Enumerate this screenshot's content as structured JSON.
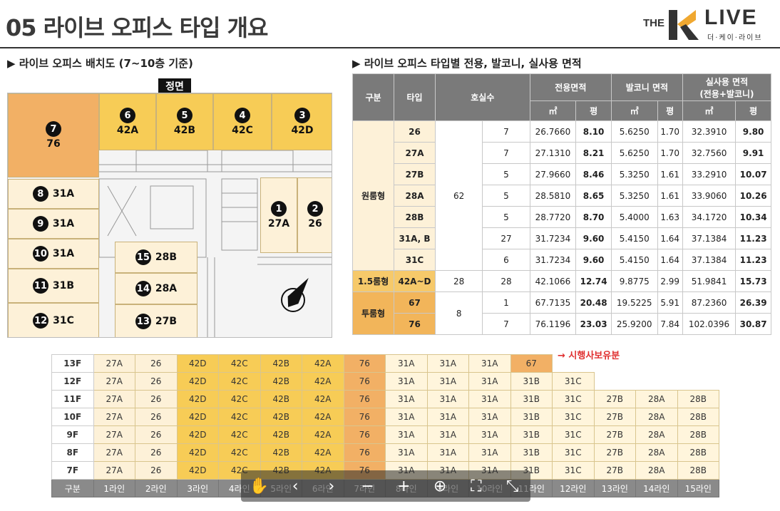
{
  "page": {
    "title": "05 라이브 오피스 타입 개요",
    "logo": {
      "the": "THE",
      "live": "LIVE",
      "sub": "더·케이·라이브"
    }
  },
  "plan": {
    "heading": "▶ 라이브 오피스 배치도 (7~10층 기준)",
    "facade": "정면",
    "units": [
      {
        "n": "7",
        "type": "76"
      },
      {
        "n": "6",
        "type": "42A"
      },
      {
        "n": "5",
        "type": "42B"
      },
      {
        "n": "4",
        "type": "42C"
      },
      {
        "n": "3",
        "type": "42D"
      },
      {
        "n": "8",
        "type": "31A"
      },
      {
        "n": "9",
        "type": "31A"
      },
      {
        "n": "10",
        "type": "31A"
      },
      {
        "n": "11",
        "type": "31B"
      },
      {
        "n": "12",
        "type": "31C"
      },
      {
        "n": "15",
        "type": "28B"
      },
      {
        "n": "14",
        "type": "28A"
      },
      {
        "n": "13",
        "type": "27B"
      },
      {
        "n": "1",
        "type": "27A"
      },
      {
        "n": "2",
        "type": "26"
      }
    ],
    "colors": {
      "unit76": "#f2b065",
      "unit42": "#f7cc56",
      "unitOther": "#fdf1d8"
    }
  },
  "area_table": {
    "heading": "▶ 라이브 오피스 타입별 전용, 발코니, 실사용 면적",
    "h": {
      "cat": "구분",
      "type": "타입",
      "rooms": "호실수",
      "exclusive": "전용면적",
      "balcony": "발코니 면적",
      "actual": "실사용 면적",
      "actual_sub": "(전용+발코니)",
      "m2": "㎡",
      "py": "평"
    },
    "groups": [
      {
        "name": "원룸형",
        "total": "62",
        "rows": [
          {
            "type": "26",
            "rooms": "7",
            "em": "26.7660",
            "ep": "8.10",
            "bm": "5.6250",
            "bp": "1.70",
            "am": "32.3910",
            "ap": "9.80"
          },
          {
            "type": "27A",
            "rooms": "7",
            "em": "27.1310",
            "ep": "8.21",
            "bm": "5.6250",
            "bp": "1.70",
            "am": "32.7560",
            "ap": "9.91"
          },
          {
            "type": "27B",
            "rooms": "5",
            "em": "27.9660",
            "ep": "8.46",
            "bm": "5.3250",
            "bp": "1.61",
            "am": "33.2910",
            "ap": "10.07"
          },
          {
            "type": "28A",
            "rooms": "5",
            "em": "28.5810",
            "ep": "8.65",
            "bm": "5.3250",
            "bp": "1.61",
            "am": "33.9060",
            "ap": "10.26"
          },
          {
            "type": "28B",
            "rooms": "5",
            "em": "28.7720",
            "ep": "8.70",
            "bm": "5.4000",
            "bp": "1.63",
            "am": "34.1720",
            "ap": "10.34"
          },
          {
            "type": "31A, B",
            "rooms": "27",
            "em": "31.7234",
            "ep": "9.60",
            "bm": "5.4150",
            "bp": "1.64",
            "am": "37.1384",
            "ap": "11.23"
          },
          {
            "type": "31C",
            "rooms": "6",
            "em": "31.7234",
            "ep": "9.60",
            "bm": "5.4150",
            "bp": "1.64",
            "am": "37.1384",
            "ap": "11.23"
          }
        ]
      },
      {
        "name": "1.5룸형",
        "total": "28",
        "rows": [
          {
            "type": "42A~D",
            "rooms": "28",
            "em": "42.1066",
            "ep": "12.74",
            "bm": "9.8775",
            "bp": "2.99",
            "am": "51.9841",
            "ap": "15.73"
          }
        ]
      },
      {
        "name": "투룸형",
        "total": "8",
        "rows": [
          {
            "type": "67",
            "rooms": "1",
            "em": "67.7135",
            "ep": "20.48",
            "bm": "19.5225",
            "bp": "5.91",
            "am": "87.2360",
            "ap": "26.39"
          },
          {
            "type": "76",
            "rooms": "7",
            "em": "76.1196",
            "ep": "23.03",
            "bm": "25.9200",
            "bp": "7.84",
            "am": "102.0396",
            "ap": "30.87"
          }
        ]
      }
    ]
  },
  "floor_table": {
    "note": "→ 시행사보유분",
    "rows": [
      {
        "floor": "13F",
        "cells": [
          "27A",
          "26",
          "42D",
          "42C",
          "42B",
          "42A",
          "76",
          "31A",
          "31A",
          "31A",
          "67"
        ]
      },
      {
        "floor": "12F",
        "cells": [
          "27A",
          "26",
          "42D",
          "42C",
          "42B",
          "42A",
          "76",
          "31A",
          "31A",
          "31A",
          "31B",
          "31C"
        ]
      },
      {
        "floor": "11F",
        "cells": [
          "27A",
          "26",
          "42D",
          "42C",
          "42B",
          "42A",
          "76",
          "31A",
          "31A",
          "31A",
          "31B",
          "31C",
          "27B",
          "28A",
          "28B"
        ]
      },
      {
        "floor": "10F",
        "cells": [
          "27A",
          "26",
          "42D",
          "42C",
          "42B",
          "42A",
          "76",
          "31A",
          "31A",
          "31A",
          "31B",
          "31C",
          "27B",
          "28A",
          "28B"
        ]
      },
      {
        "floor": "9F",
        "cells": [
          "27A",
          "26",
          "42D",
          "42C",
          "42B",
          "42A",
          "76",
          "31A",
          "31A",
          "31A",
          "31B",
          "31C",
          "27B",
          "28A",
          "28B"
        ]
      },
      {
        "floor": "8F",
        "cells": [
          "27A",
          "26",
          "42D",
          "42C",
          "42B",
          "42A",
          "76",
          "31A",
          "31A",
          "31A",
          "31B",
          "31C",
          "27B",
          "28A",
          "28B"
        ]
      },
      {
        "floor": "7F",
        "cells": [
          "27A",
          "26",
          "42D",
          "42C",
          "42B",
          "42A",
          "76",
          "31A",
          "31A",
          "31A",
          "31B",
          "31C",
          "27B",
          "28A",
          "28B"
        ]
      }
    ],
    "footer": [
      "구분",
      "1라인",
      "2라인",
      "3라인",
      "4라인",
      "5라인",
      "6라인",
      "7라인",
      "8라인",
      "9라인",
      "10라인",
      "11라인",
      "12라인",
      "13라인",
      "14라인",
      "15라인"
    ]
  },
  "toolbar": {
    "buttons": [
      {
        "name": "hand-tool-icon",
        "glyph": "✋"
      },
      {
        "name": "prev-icon",
        "glyph": "‹"
      },
      {
        "name": "next-icon",
        "glyph": "›"
      },
      {
        "name": "zoom-out-icon",
        "glyph": "−"
      },
      {
        "name": "zoom-in-icon",
        "glyph": "+"
      },
      {
        "name": "zoom-fit-icon",
        "glyph": "⊕"
      },
      {
        "name": "fullscreen-icon",
        "glyph": "⛶"
      },
      {
        "name": "exit-fullscreen-icon",
        "glyph": "⤡"
      }
    ]
  }
}
